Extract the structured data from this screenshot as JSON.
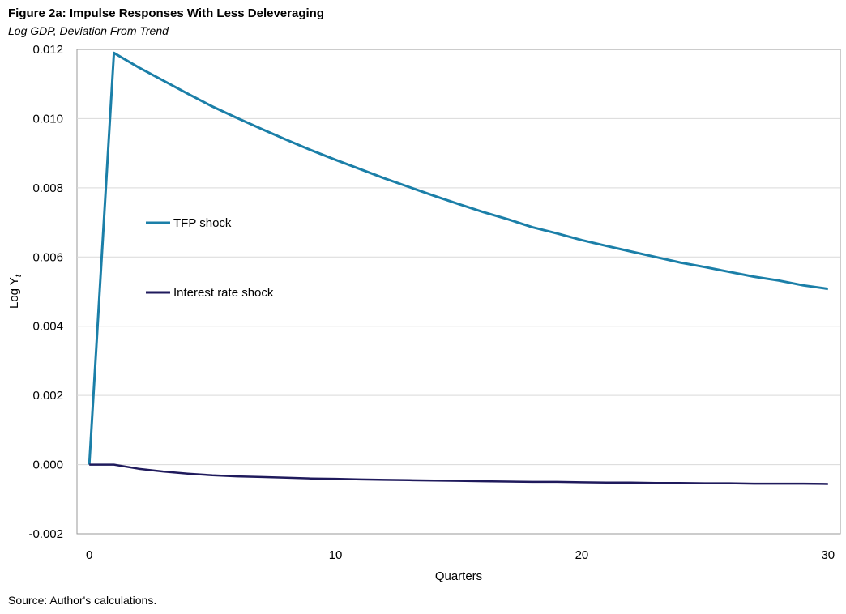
{
  "header": {
    "title": "Figure 2a: Impulse Responses With Less Deleveraging",
    "subtitle": "Log GDP, Deviation From Trend"
  },
  "footer": {
    "source": "Source: Author's calculations."
  },
  "chart_data": {
    "type": "line",
    "xlabel": "Quarters",
    "ylabel": "Log Y",
    "ylabel_subscript": "t",
    "xlim": [
      -0.5,
      30.5
    ],
    "ylim": [
      -0.002,
      0.012
    ],
    "xticks": [
      0,
      10,
      20,
      30
    ],
    "xtick_labels": [
      "0",
      "10",
      "20",
      "30"
    ],
    "yticks": [
      -0.002,
      0.0,
      0.002,
      0.004,
      0.006,
      0.008,
      0.01,
      0.012
    ],
    "ytick_labels": [
      "-0.002",
      "0.000",
      "0.002",
      "0.004",
      "0.006",
      "0.008",
      "0.010",
      "0.012"
    ],
    "grid": "horizontal",
    "legend_position": "inside-left",
    "x": [
      0,
      1,
      2,
      3,
      4,
      5,
      6,
      7,
      8,
      9,
      10,
      11,
      12,
      13,
      14,
      15,
      16,
      17,
      18,
      19,
      20,
      21,
      22,
      23,
      24,
      25,
      26,
      27,
      28,
      29,
      30
    ],
    "series": [
      {
        "name": "TFP shock",
        "color": "#1b7fa8",
        "values": [
          0.0,
          0.0119,
          0.01148,
          0.0111,
          0.01072,
          0.01035,
          0.01002,
          0.0097,
          0.00939,
          0.00909,
          0.00881,
          0.00854,
          0.00827,
          0.00802,
          0.00777,
          0.00753,
          0.0073,
          0.00709,
          0.00686,
          0.00668,
          0.00649,
          0.00632,
          0.00616,
          0.006,
          0.00584,
          0.00571,
          0.00557,
          0.00543,
          0.00532,
          0.00518,
          0.00508
        ]
      },
      {
        "name": "Interest rate shock",
        "color": "#1f1a5c",
        "values": [
          0.0,
          0.0,
          -0.00012,
          -0.0002,
          -0.00026,
          -0.00031,
          -0.00034,
          -0.00036,
          -0.00038,
          -0.0004,
          -0.00041,
          -0.00043,
          -0.00044,
          -0.00045,
          -0.00046,
          -0.00047,
          -0.00048,
          -0.00049,
          -0.0005,
          -0.0005,
          -0.00051,
          -0.00052,
          -0.00052,
          -0.00053,
          -0.00053,
          -0.00054,
          -0.00054,
          -0.00055,
          -0.00055,
          -0.00055,
          -0.00056
        ]
      }
    ]
  }
}
